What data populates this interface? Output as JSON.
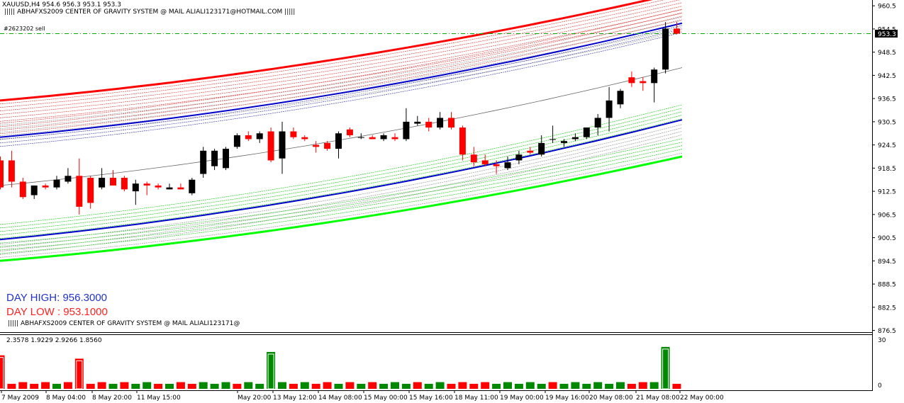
{
  "header": {
    "symbol_ohlc": "XAUUSD,H4  954.6 956.3 953.1 953.3",
    "indicator_label": "|||||  ABHAFXS2009 CENTER OF GRAVITY SYSTEM @ MAIL ALIALI123171@HOTMAIL.COM  |||||",
    "order_label": "#2623202 sell"
  },
  "info": {
    "day_high": "DAY HIGH:  956.3000",
    "day_low": "DAY LOW :  953.1000",
    "bottom_label": "|||||  ABHAFXS2009 CENTER OF GRAVITY SYSTEM @ MAIL ALIALI123171@"
  },
  "subwindow": {
    "values_label": "2.3578 1.9229 2.9266 1.8560"
  },
  "colors": {
    "bull": "#000000",
    "bear": "#ff0000",
    "upper_band": "#ff0000",
    "lower_band": "#00ff00",
    "center_band": "#0000cc",
    "order_line": "#00aa00",
    "price_tag_bg": "#000000"
  },
  "chart_data": {
    "type": "candlestick",
    "ylim": [
      876.6,
      962.0
    ],
    "price_axis_ticks": [
      "960.5",
      "954.5",
      "948.5",
      "942.5",
      "936.5",
      "930.5",
      "924.5",
      "918.5",
      "912.5",
      "906.5",
      "900.5",
      "894.5",
      "888.5",
      "882.5",
      "876.5"
    ],
    "current_price": "953.3",
    "order_price": 953.3,
    "time_labels": [
      "7 May 2009",
      "8 May 04:00",
      "8 May 20:00",
      "11 May 15:00",
      "May 20:00",
      "13 May 12:00",
      "14 May 08:00",
      "15 May 00:00",
      "15 May 16:00",
      "18 May 11:00",
      "19 May 00:00",
      "19 May 16:00",
      "20 May 08:00",
      "21 May 08:00",
      "22 May 00:00"
    ],
    "candles": [
      {
        "o": 920.5,
        "h": 921.5,
        "l": 913.0,
        "c": 913.5
      },
      {
        "o": 920.5,
        "h": 923.0,
        "l": 913.5,
        "c": 915.0
      },
      {
        "o": 915.0,
        "h": 916.0,
        "l": 910.5,
        "c": 911.0
      },
      {
        "o": 911.5,
        "h": 914.0,
        "l": 910.5,
        "c": 914.0
      },
      {
        "o": 914.0,
        "h": 914.5,
        "l": 913.0,
        "c": 913.5
      },
      {
        "o": 913.5,
        "h": 916.5,
        "l": 913.0,
        "c": 915.5
      },
      {
        "o": 915.0,
        "h": 918.5,
        "l": 914.5,
        "c": 916.5
      },
      {
        "o": 916.5,
        "h": 921.0,
        "l": 906.5,
        "c": 908.5
      },
      {
        "o": 916.0,
        "h": 916.5,
        "l": 908.0,
        "c": 909.5
      },
      {
        "o": 913.5,
        "h": 918.5,
        "l": 913.0,
        "c": 916.0
      },
      {
        "o": 916.0,
        "h": 918.0,
        "l": 914.0,
        "c": 914.0
      },
      {
        "o": 916.0,
        "h": 916.5,
        "l": 912.5,
        "c": 913.0
      },
      {
        "o": 912.5,
        "h": 915.5,
        "l": 909.0,
        "c": 914.5
      },
      {
        "o": 914.5,
        "h": 915.0,
        "l": 911.5,
        "c": 914.0
      },
      {
        "o": 914.0,
        "h": 914.5,
        "l": 913.0,
        "c": 913.5
      },
      {
        "o": 913.0,
        "h": 914.5,
        "l": 913.0,
        "c": 913.5
      },
      {
        "o": 913.5,
        "h": 914.5,
        "l": 913.0,
        "c": 913.0
      },
      {
        "o": 912.0,
        "h": 916.0,
        "l": 911.5,
        "c": 915.5
      },
      {
        "o": 917.0,
        "h": 924.0,
        "l": 916.0,
        "c": 923.0
      },
      {
        "o": 919.0,
        "h": 923.5,
        "l": 918.0,
        "c": 923.0
      },
      {
        "o": 918.5,
        "h": 924.0,
        "l": 918.0,
        "c": 923.5
      },
      {
        "o": 924.0,
        "h": 927.5,
        "l": 923.5,
        "c": 927.0
      },
      {
        "o": 927.0,
        "h": 928.0,
        "l": 925.5,
        "c": 926.0
      },
      {
        "o": 926.0,
        "h": 928.0,
        "l": 925.0,
        "c": 927.5
      },
      {
        "o": 928.0,
        "h": 929.0,
        "l": 920.0,
        "c": 920.5
      },
      {
        "o": 921.0,
        "h": 930.5,
        "l": 917.0,
        "c": 928.0
      },
      {
        "o": 928.0,
        "h": 929.0,
        "l": 926.0,
        "c": 926.5
      },
      {
        "o": 926.5,
        "h": 927.0,
        "l": 925.5,
        "c": 926.0
      },
      {
        "o": 924.5,
        "h": 925.5,
        "l": 922.5,
        "c": 924.0
      },
      {
        "o": 925.0,
        "h": 925.5,
        "l": 923.0,
        "c": 923.5
      },
      {
        "o": 923.5,
        "h": 928.0,
        "l": 921.0,
        "c": 927.5
      },
      {
        "o": 928.5,
        "h": 929.0,
        "l": 926.5,
        "c": 927.0
      },
      {
        "o": 926.5,
        "h": 927.5,
        "l": 926.0,
        "c": 926.5
      },
      {
        "o": 926.5,
        "h": 927.0,
        "l": 926.0,
        "c": 926.0
      },
      {
        "o": 926.0,
        "h": 927.5,
        "l": 925.5,
        "c": 927.0
      },
      {
        "o": 926.5,
        "h": 927.5,
        "l": 925.5,
        "c": 926.0
      },
      {
        "o": 926.0,
        "h": 934.0,
        "l": 925.5,
        "c": 930.5
      },
      {
        "o": 930.0,
        "h": 932.0,
        "l": 929.5,
        "c": 930.5
      },
      {
        "o": 930.5,
        "h": 931.5,
        "l": 928.0,
        "c": 929.0
      },
      {
        "o": 929.0,
        "h": 933.0,
        "l": 928.5,
        "c": 931.5
      },
      {
        "o": 931.5,
        "h": 933.0,
        "l": 928.5,
        "c": 929.0
      },
      {
        "o": 929.0,
        "h": 929.5,
        "l": 920.5,
        "c": 922.0
      },
      {
        "o": 922.0,
        "h": 924.0,
        "l": 919.0,
        "c": 920.0
      },
      {
        "o": 920.5,
        "h": 922.0,
        "l": 919.0,
        "c": 919.5
      },
      {
        "o": 919.5,
        "h": 920.5,
        "l": 917.0,
        "c": 919.0
      },
      {
        "o": 918.5,
        "h": 921.5,
        "l": 918.0,
        "c": 920.0
      },
      {
        "o": 920.5,
        "h": 923.0,
        "l": 919.5,
        "c": 922.0
      },
      {
        "o": 923.0,
        "h": 924.0,
        "l": 922.0,
        "c": 922.5
      },
      {
        "o": 922.0,
        "h": 927.0,
        "l": 921.5,
        "c": 925.0
      },
      {
        "o": 926.0,
        "h": 929.5,
        "l": 925.0,
        "c": 926.0
      },
      {
        "o": 925.0,
        "h": 926.0,
        "l": 924.0,
        "c": 925.5
      },
      {
        "o": 926.0,
        "h": 927.5,
        "l": 925.5,
        "c": 926.5
      },
      {
        "o": 926.5,
        "h": 929.0,
        "l": 926.0,
        "c": 929.0
      },
      {
        "o": 929.0,
        "h": 932.5,
        "l": 927.0,
        "c": 931.5
      },
      {
        "o": 931.5,
        "h": 939.5,
        "l": 928.0,
        "c": 936.0
      },
      {
        "o": 935.0,
        "h": 939.0,
        "l": 934.0,
        "c": 938.5
      },
      {
        "o": 942.0,
        "h": 943.5,
        "l": 939.5,
        "c": 940.5
      },
      {
        "o": 941.0,
        "h": 942.0,
        "l": 938.5,
        "c": 940.5
      },
      {
        "o": 940.5,
        "h": 944.5,
        "l": 935.5,
        "c": 944.0
      },
      {
        "o": 944.0,
        "h": 956.3,
        "l": 943.0,
        "c": 954.6
      },
      {
        "o": 954.6,
        "h": 956.3,
        "l": 953.1,
        "c": 953.3
      }
    ],
    "bands": {
      "upper_start": 936.0,
      "upper_end": 964.0,
      "center_upper_start": 926.5,
      "center_upper_end": 956.0,
      "center_lower_start": 900.0,
      "center_lower_end": 931.0,
      "lower_start": 894.5,
      "lower_end": 921.5,
      "ma_start": 914.0,
      "ma_end": 944.5
    },
    "subwindow_axis": [
      "30",
      "0"
    ],
    "histogram": [
      {
        "v": 20,
        "c": "red",
        "mark": true
      },
      {
        "v": 3,
        "c": "red"
      },
      {
        "v": 4,
        "c": "red"
      },
      {
        "v": 3,
        "c": "red"
      },
      {
        "v": 4,
        "c": "red"
      },
      {
        "v": 3,
        "c": "green"
      },
      {
        "v": 4,
        "c": "red"
      },
      {
        "v": 18,
        "c": "red",
        "mark": true
      },
      {
        "v": 3,
        "c": "red"
      },
      {
        "v": 4,
        "c": "red"
      },
      {
        "v": 3,
        "c": "green"
      },
      {
        "v": 4,
        "c": "red"
      },
      {
        "v": 3,
        "c": "green"
      },
      {
        "v": 4,
        "c": "green"
      },
      {
        "v": 3,
        "c": "red"
      },
      {
        "v": 3,
        "c": "green"
      },
      {
        "v": 4,
        "c": "red"
      },
      {
        "v": 3,
        "c": "red"
      },
      {
        "v": 4,
        "c": "green"
      },
      {
        "v": 3,
        "c": "green"
      },
      {
        "v": 4,
        "c": "green"
      },
      {
        "v": 3,
        "c": "red"
      },
      {
        "v": 4,
        "c": "green"
      },
      {
        "v": 3,
        "c": "green"
      },
      {
        "v": 22,
        "c": "green",
        "mark": true
      },
      {
        "v": 4,
        "c": "green"
      },
      {
        "v": 3,
        "c": "red"
      },
      {
        "v": 4,
        "c": "green"
      },
      {
        "v": 3,
        "c": "red"
      },
      {
        "v": 4,
        "c": "red"
      },
      {
        "v": 3,
        "c": "green"
      },
      {
        "v": 4,
        "c": "red"
      },
      {
        "v": 3,
        "c": "green"
      },
      {
        "v": 4,
        "c": "red"
      },
      {
        "v": 3,
        "c": "green"
      },
      {
        "v": 4,
        "c": "green"
      },
      {
        "v": 3,
        "c": "green"
      },
      {
        "v": 4,
        "c": "red"
      },
      {
        "v": 3,
        "c": "green"
      },
      {
        "v": 4,
        "c": "green"
      },
      {
        "v": 3,
        "c": "red"
      },
      {
        "v": 4,
        "c": "red"
      },
      {
        "v": 3,
        "c": "red"
      },
      {
        "v": 4,
        "c": "red"
      },
      {
        "v": 3,
        "c": "green"
      },
      {
        "v": 4,
        "c": "green"
      },
      {
        "v": 3,
        "c": "green"
      },
      {
        "v": 4,
        "c": "green"
      },
      {
        "v": 3,
        "c": "green"
      },
      {
        "v": 4,
        "c": "red"
      },
      {
        "v": 3,
        "c": "green"
      },
      {
        "v": 4,
        "c": "green"
      },
      {
        "v": 3,
        "c": "green"
      },
      {
        "v": 4,
        "c": "green"
      },
      {
        "v": 3,
        "c": "green"
      },
      {
        "v": 4,
        "c": "green"
      },
      {
        "v": 3,
        "c": "red"
      },
      {
        "v": 4,
        "c": "red"
      },
      {
        "v": 4,
        "c": "green"
      },
      {
        "v": 25,
        "c": "green",
        "mark": true
      },
      {
        "v": 3,
        "c": "red"
      }
    ]
  }
}
